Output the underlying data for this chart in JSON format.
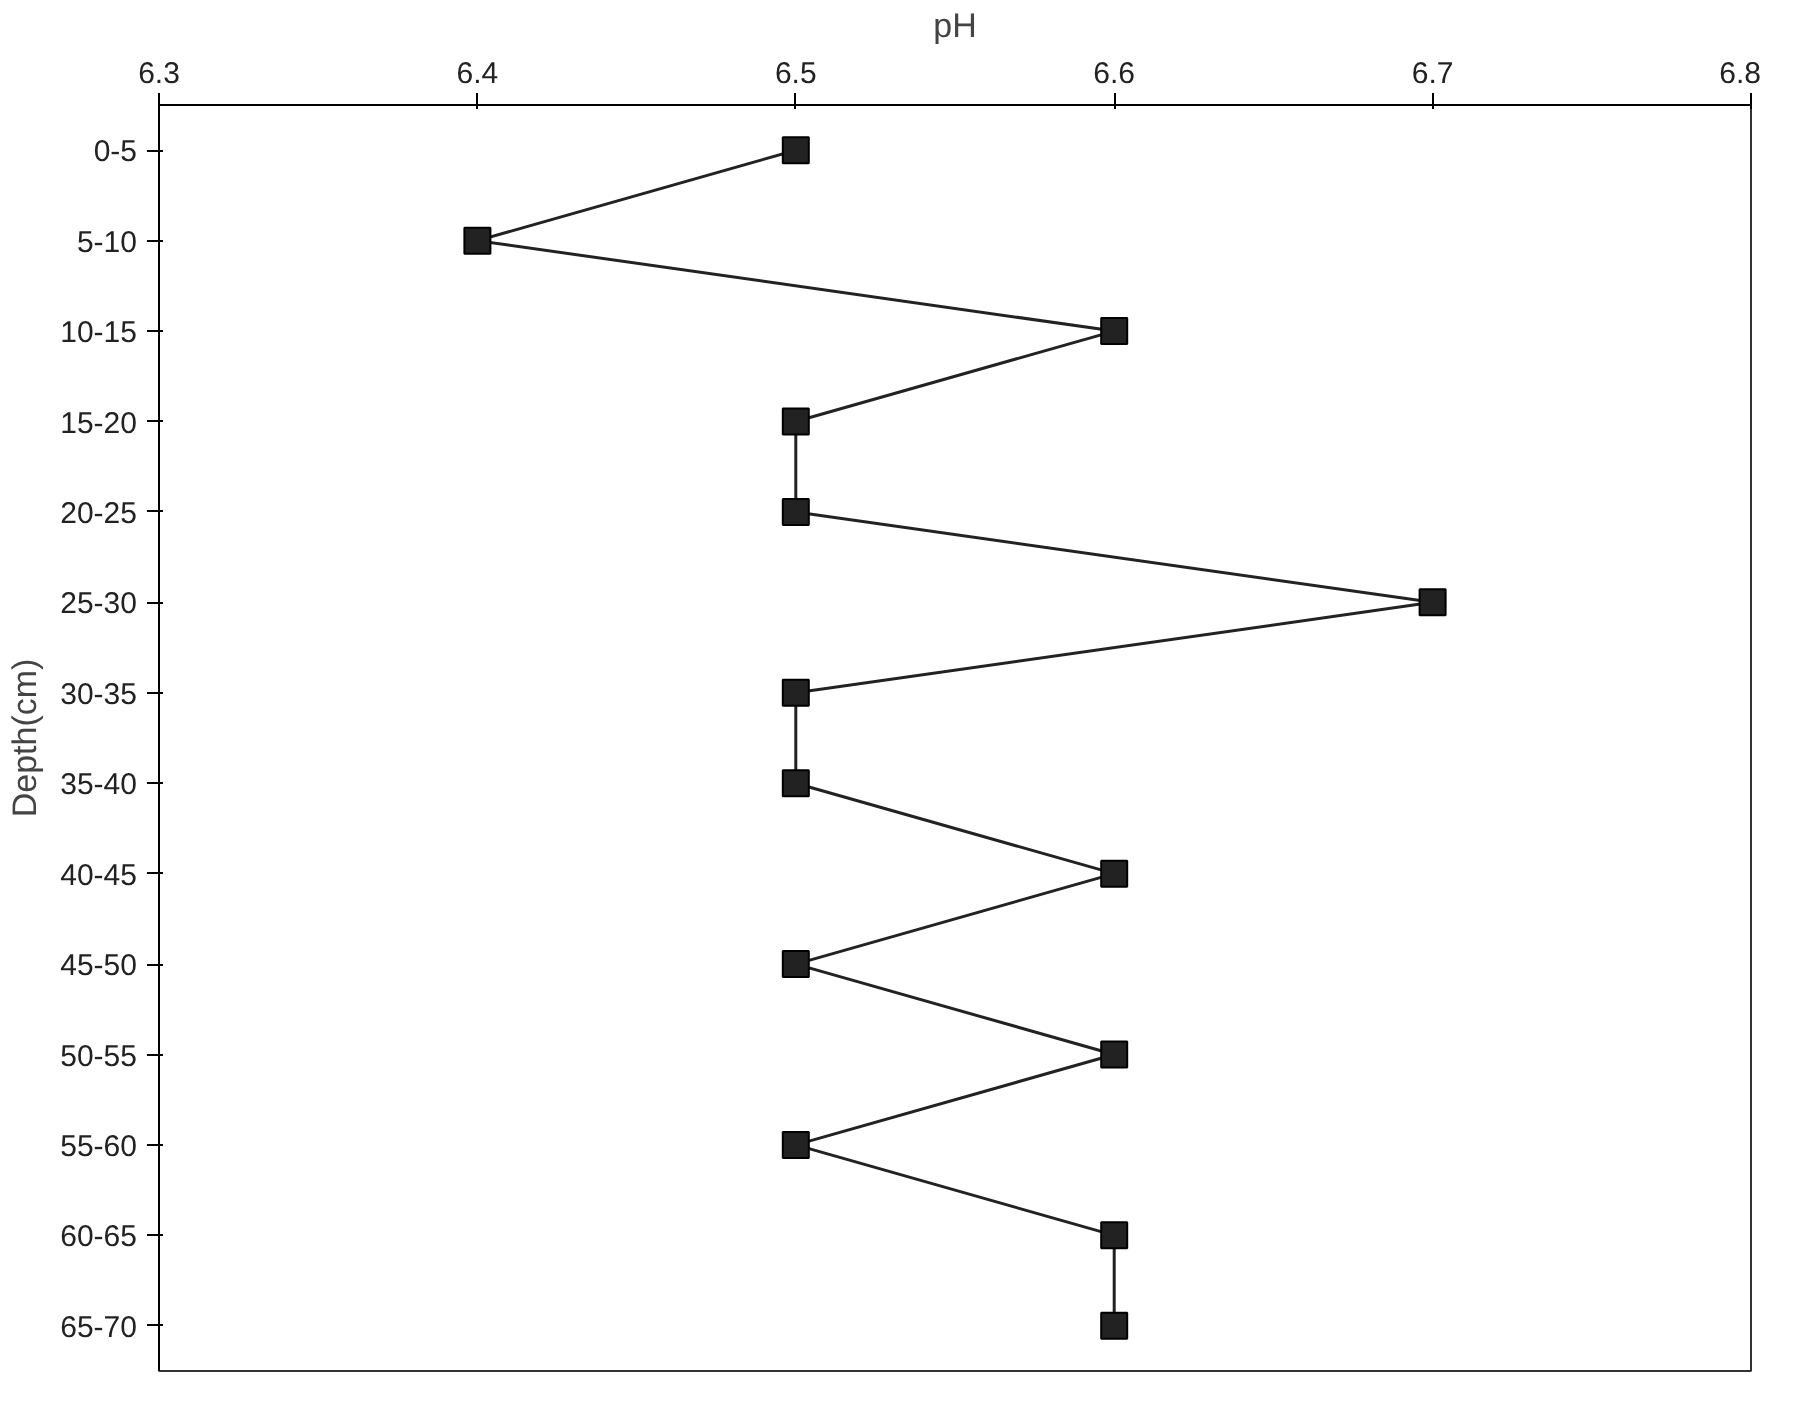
{
  "chart_data": {
    "type": "line",
    "orientation": "horizontal",
    "xlabel": "pH",
    "ylabel": "Depth(cm)",
    "categories": [
      "0-5",
      "5-10",
      "10-15",
      "15-20",
      "20-25",
      "25-30",
      "30-35",
      "35-40",
      "40-45",
      "45-50",
      "50-55",
      "55-60",
      "60-65",
      "65-70"
    ],
    "series": [
      {
        "color": "#222222",
        "values": [
          6.5,
          6.4,
          6.6,
          6.5,
          6.5,
          6.7,
          6.5,
          6.5,
          6.6,
          6.5,
          6.6,
          6.5,
          6.6,
          6.6
        ]
      }
    ],
    "xlim": [
      6.3,
      6.8
    ],
    "xticks": [
      6.3,
      6.4,
      6.5,
      6.6,
      6.7,
      6.8
    ],
    "marker": "square",
    "line_style": "solid",
    "grid": false
  }
}
